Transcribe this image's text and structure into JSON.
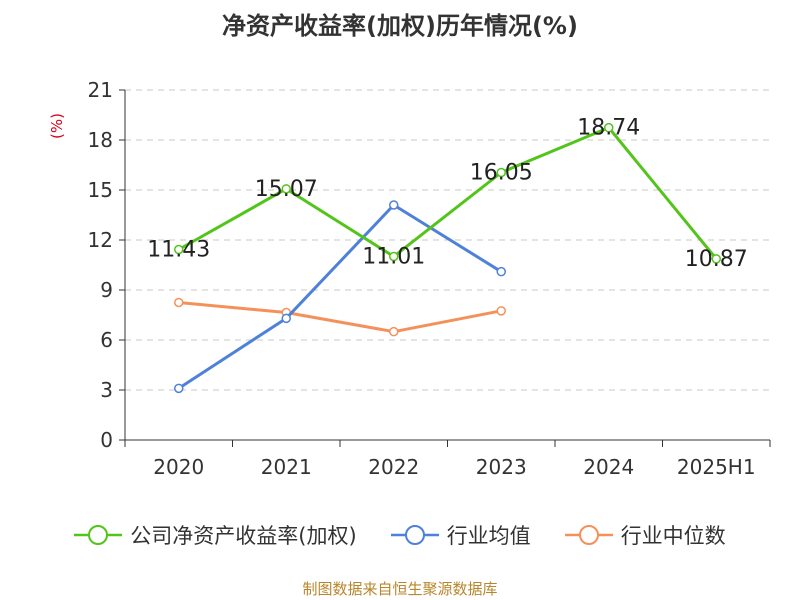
{
  "chart_data": {
    "type": "line",
    "title": "净资产收益率(加权)历年情况(%)",
    "ylabel": "(%)",
    "xlabel": "",
    "categories": [
      "2020",
      "2021",
      "2022",
      "2023",
      "2024",
      "2025H1"
    ],
    "yticks": [
      "0",
      "3",
      "6",
      "9",
      "12",
      "15",
      "18",
      "21"
    ],
    "ylim": [
      0,
      21
    ],
    "grid": true,
    "legend_position": "bottom",
    "series": [
      {
        "name": "公司净资产收益率(加权)",
        "color": "#52c41a",
        "values": [
          11.43,
          15.07,
          11.01,
          16.05,
          18.74,
          10.87
        ],
        "labels": [
          "11.43",
          "15.07",
          "11.01",
          "16.05",
          "18.74",
          "10.87"
        ]
      },
      {
        "name": "行业均值",
        "color": "#4f81d9",
        "values": [
          3.1,
          7.3,
          14.1,
          10.1,
          null,
          null
        ]
      },
      {
        "name": "行业中位数",
        "color": "#f4915a",
        "values": [
          8.25,
          7.65,
          6.5,
          7.75,
          null,
          null
        ]
      }
    ]
  },
  "source": "制图数据来自恒生聚源数据库"
}
